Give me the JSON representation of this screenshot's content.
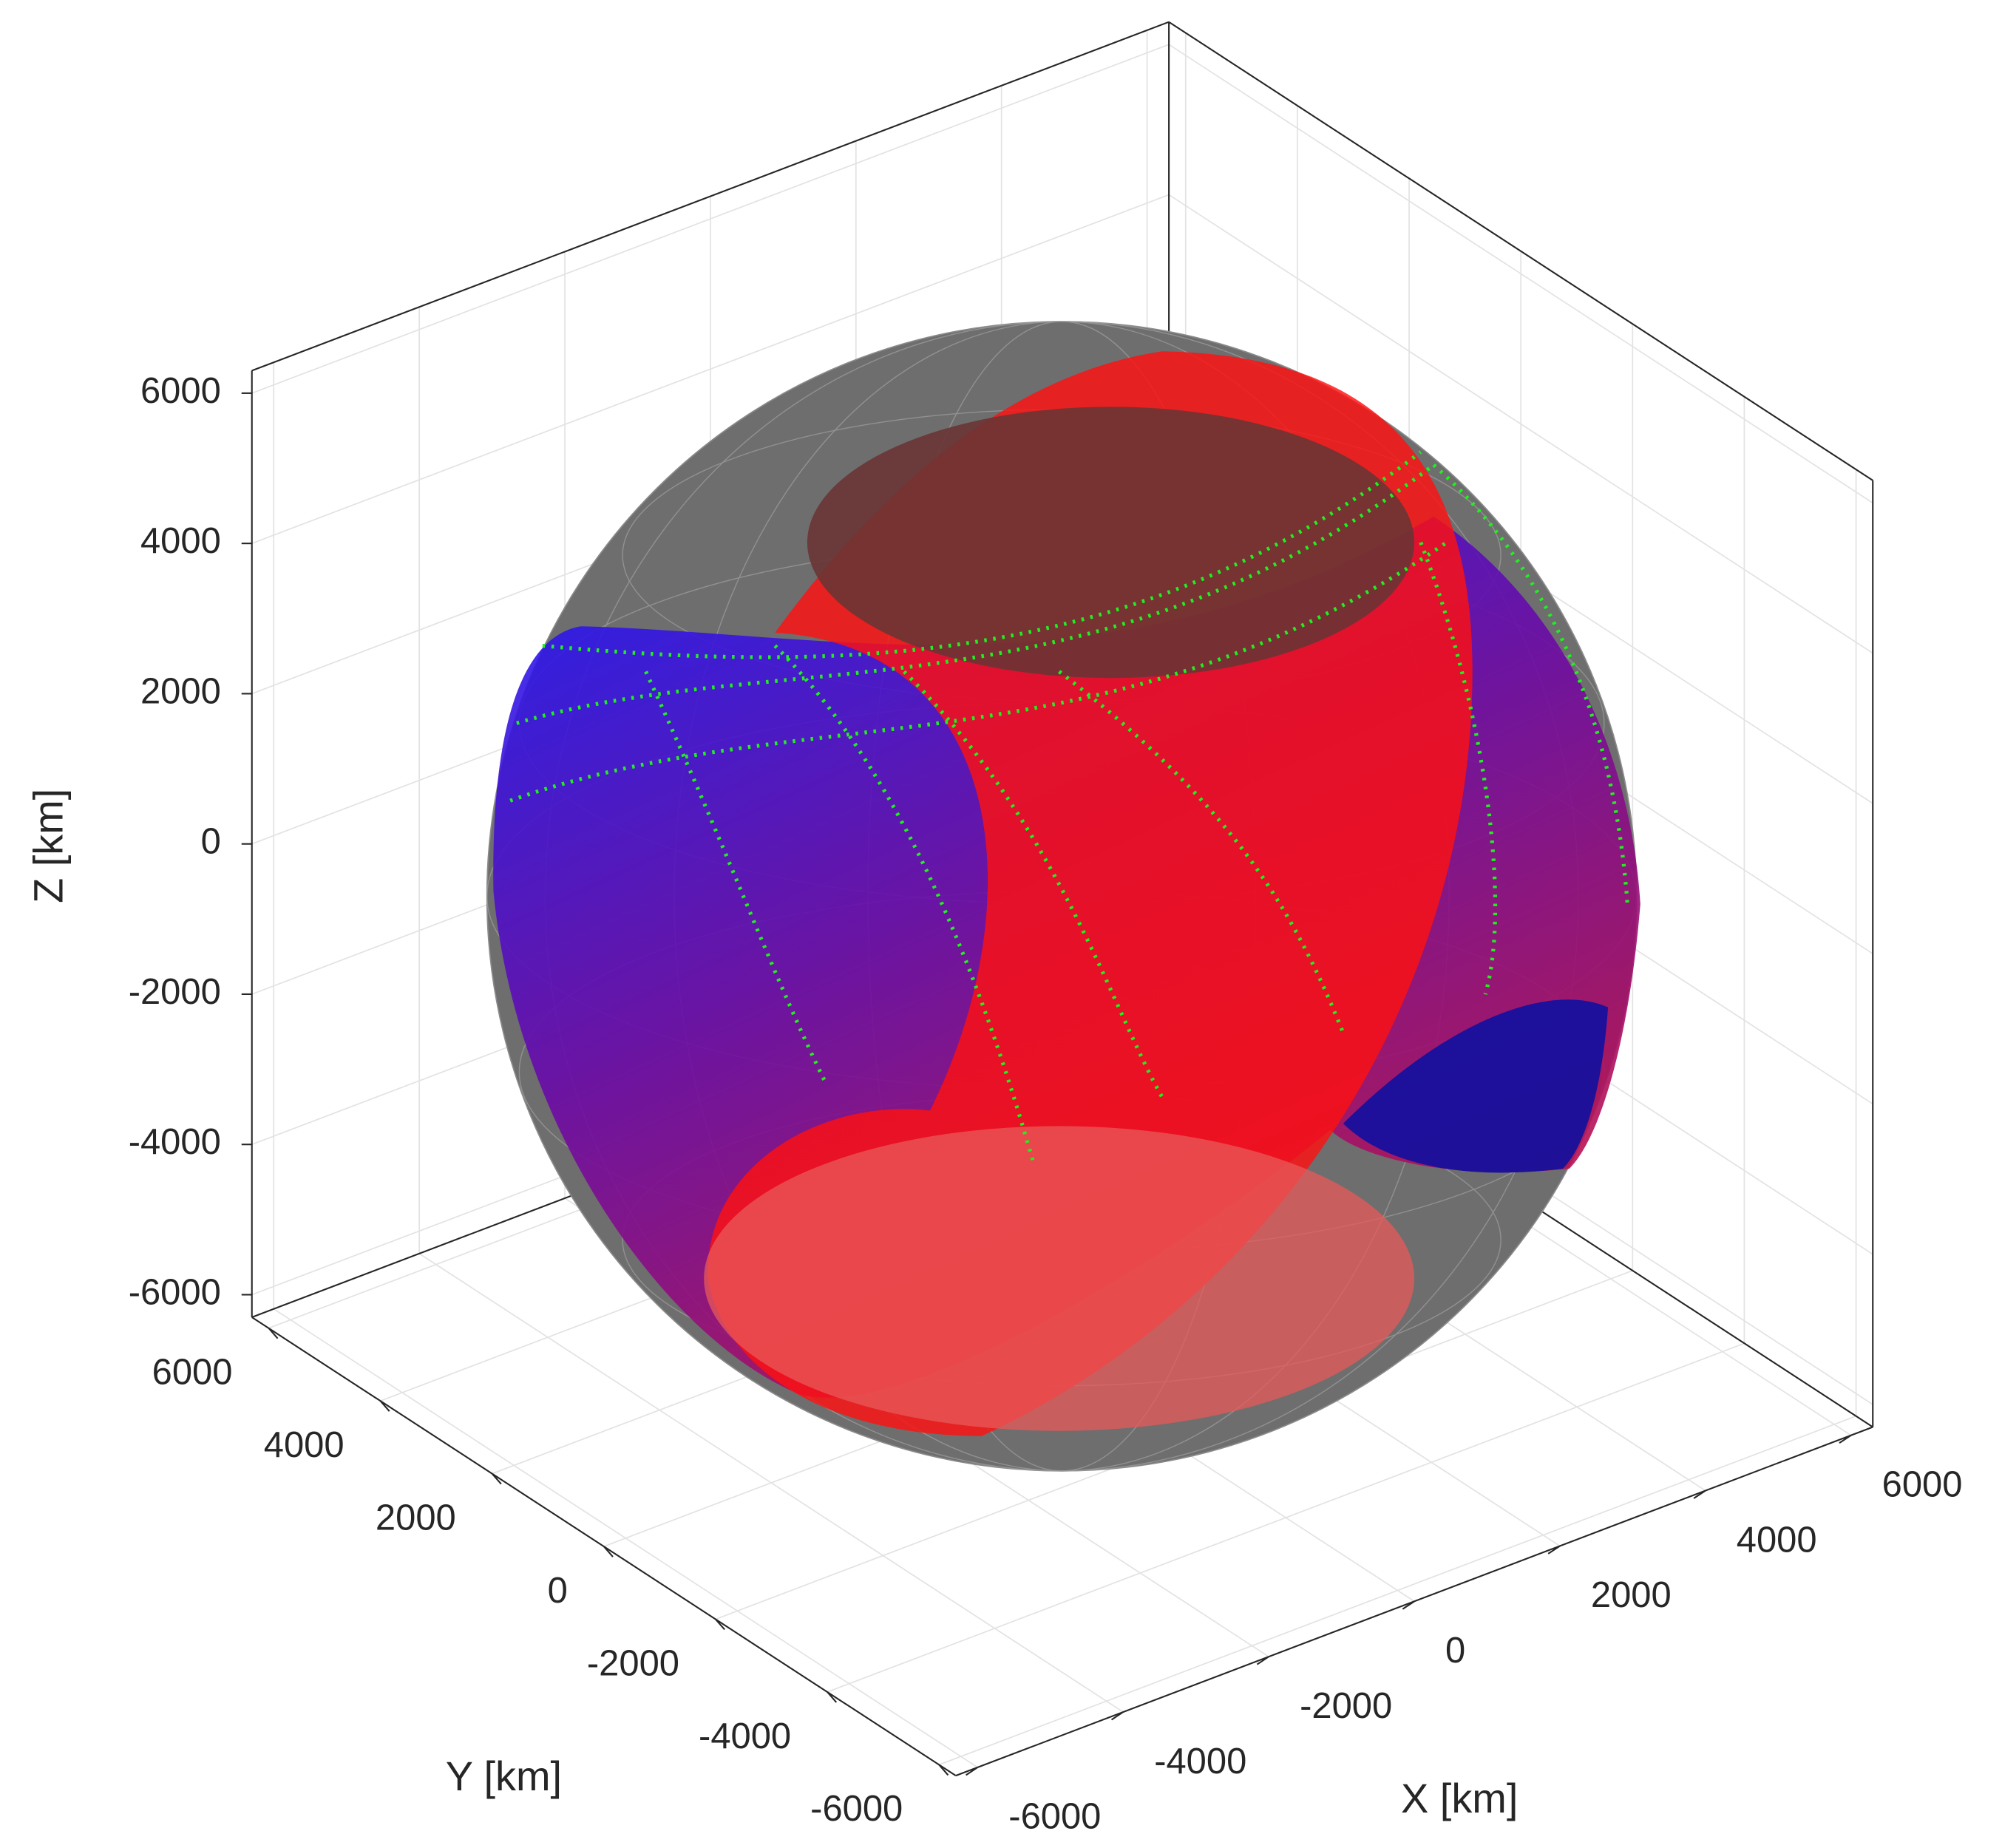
{
  "chart_data": {
    "type": "scatter3d",
    "xlabel": "X [km]",
    "ylabel": "Y [km]",
    "zlabel": "Z [km]",
    "xlim": [
      -6300,
      6300
    ],
    "ylim": [
      -6300,
      6300
    ],
    "zlim": [
      -6300,
      6300
    ],
    "xticks": [
      -6000,
      -4000,
      -2000,
      0,
      2000,
      4000,
      6000
    ],
    "yticks": [
      -6000,
      -4000,
      -2000,
      0,
      2000,
      4000,
      6000
    ],
    "zticks": [
      -6000,
      -4000,
      -2000,
      0,
      2000,
      4000,
      6000
    ],
    "grid": true
  }
}
